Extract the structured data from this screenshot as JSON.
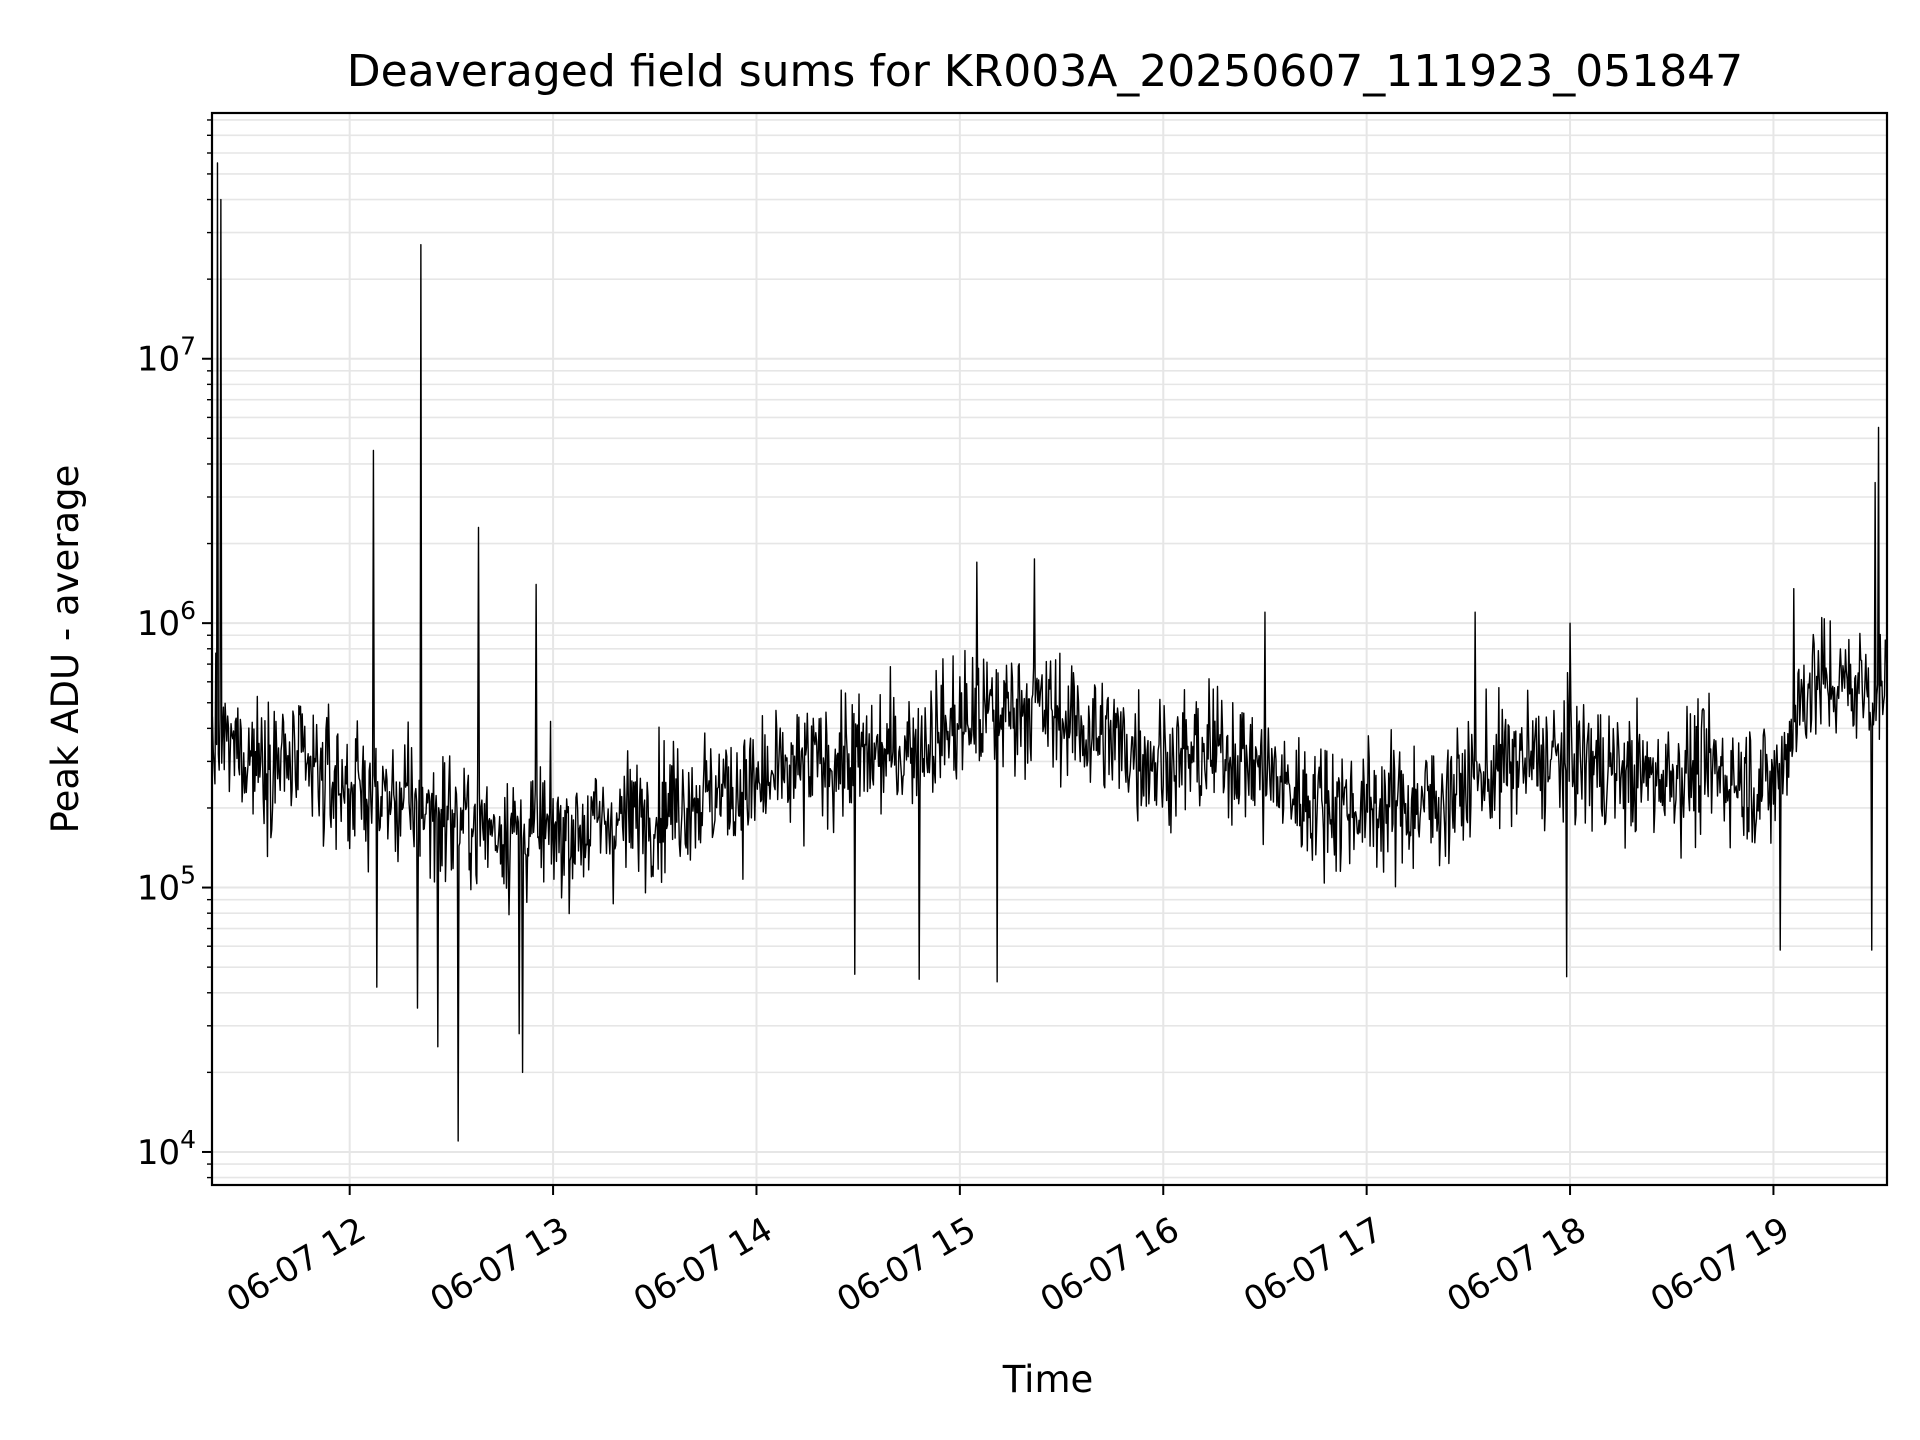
{
  "chart_data": {
    "type": "line",
    "title": "Deaveraged field sums for KR003A_20250607_111923_051847",
    "xlabel": "Time",
    "ylabel": "Peak ADU - average",
    "y_scale": "log",
    "ylim": [
      7500,
      85000000
    ],
    "xlim": [
      "06-07 11:19:23",
      "06-07 19:33:30"
    ],
    "grid": true,
    "line_color": "#000000",
    "grid_color": "#e6e6e6",
    "x_ticks": [
      {
        "time": "06-07 12:00",
        "label": "06-07 12"
      },
      {
        "time": "06-07 13:00",
        "label": "06-07 13"
      },
      {
        "time": "06-07 14:00",
        "label": "06-07 14"
      },
      {
        "time": "06-07 15:00",
        "label": "06-07 15"
      },
      {
        "time": "06-07 16:00",
        "label": "06-07 16"
      },
      {
        "time": "06-07 17:00",
        "label": "06-07 17"
      },
      {
        "time": "06-07 18:00",
        "label": "06-07 18"
      },
      {
        "time": "06-07 19:00",
        "label": "06-07 19"
      }
    ],
    "y_ticks": [
      {
        "value": 10000,
        "base": "10",
        "exp": "4"
      },
      {
        "value": 100000,
        "base": "10",
        "exp": "5"
      },
      {
        "value": 1000000,
        "base": "10",
        "exp": "6"
      },
      {
        "value": 10000000,
        "base": "10",
        "exp": "7"
      }
    ],
    "series": [
      {
        "baseline": [
          [
            "06-07 11:20",
            350000
          ],
          [
            "06-07 11:40",
            300000
          ],
          [
            "06-07 12:00",
            240000
          ],
          [
            "06-07 12:20",
            200000
          ],
          [
            "06-07 12:40",
            170000
          ],
          [
            "06-07 13:00",
            160000
          ],
          [
            "06-07 13:20",
            180000
          ],
          [
            "06-07 13:40",
            220000
          ],
          [
            "06-07 14:00",
            240000
          ],
          [
            "06-07 14:20",
            300000
          ],
          [
            "06-07 14:40",
            320000
          ],
          [
            "06-07 15:00",
            420000
          ],
          [
            "06-07 15:20",
            500000
          ],
          [
            "06-07 15:40",
            380000
          ],
          [
            "06-07 16:00",
            300000
          ],
          [
            "06-07 16:20",
            330000
          ],
          [
            "06-07 16:40",
            220000
          ],
          [
            "06-07 17:00",
            200000
          ],
          [
            "06-07 17:20",
            210000
          ],
          [
            "06-07 17:40",
            290000
          ],
          [
            "06-07 18:00",
            310000
          ],
          [
            "06-07 18:20",
            260000
          ],
          [
            "06-07 18:40",
            280000
          ],
          [
            "06-07 19:00",
            240000
          ],
          [
            "06-07 19:10",
            600000
          ],
          [
            "06-07 19:33",
            560000
          ]
        ],
        "spikes": [
          [
            "06-07 11:21",
            55000000
          ],
          [
            "06-07 11:22",
            40000000
          ],
          [
            "06-07 12:07",
            4500000
          ],
          [
            "06-07 12:21",
            27000000
          ],
          [
            "06-07 12:38",
            2300000
          ],
          [
            "06-07 12:55",
            1400000
          ],
          [
            "06-07 15:05",
            1700000
          ],
          [
            "06-07 15:22",
            1750000
          ],
          [
            "06-07 16:30",
            1100000
          ],
          [
            "06-07 17:32",
            1100000
          ],
          [
            "06-07 18:00",
            1000000
          ],
          [
            "06-07 19:06",
            1350000
          ],
          [
            "06-07 19:31",
            5500000
          ],
          [
            "06-07 19:30",
            3400000
          ]
        ],
        "dips": [
          [
            "06-07 12:32",
            11000
          ],
          [
            "06-07 12:51",
            20000
          ],
          [
            "06-07 12:26",
            25000
          ],
          [
            "06-07 12:50",
            28000
          ],
          [
            "06-07 12:08",
            42000
          ],
          [
            "06-07 12:20",
            35000
          ],
          [
            "06-07 14:29",
            47000
          ],
          [
            "06-07 14:48",
            45000
          ],
          [
            "06-07 15:11",
            44000
          ],
          [
            "06-07 17:59",
            46000
          ],
          [
            "06-07 19:02",
            58000
          ],
          [
            "06-07 19:29",
            58000
          ]
        ]
      }
    ]
  }
}
